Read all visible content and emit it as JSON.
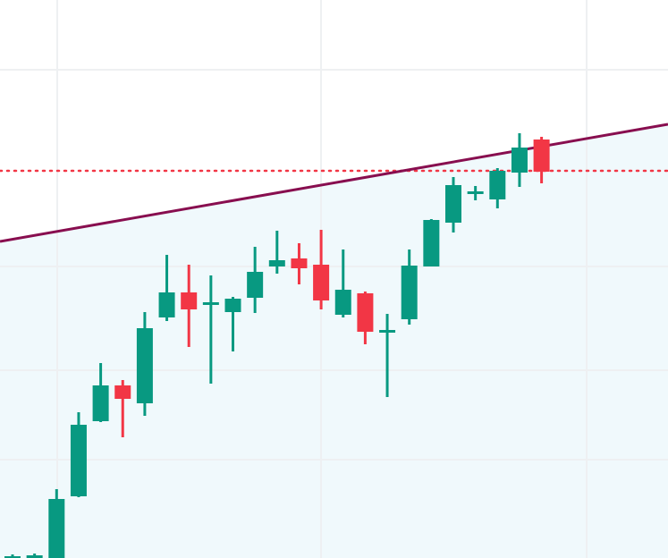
{
  "chart_data": {
    "type": "candlestick",
    "title": "",
    "xlabel": "",
    "ylabel": "",
    "grid": true,
    "ylim": [
      0,
      624
    ],
    "colors": {
      "up": "#089981",
      "down": "#F23645",
      "trendline": "#880E4F",
      "level": "#F23645",
      "grid": "#EEF0F2",
      "shade": "#F0F9FC",
      "background": "#FFFFFF"
    },
    "candles": [
      {
        "open": 2,
        "high": 4,
        "low": -1,
        "close": 2
      },
      {
        "open": 3,
        "high": 5,
        "low": -1,
        "close": 3
      },
      {
        "open": 0,
        "high": 77,
        "low": -1,
        "close": 66
      },
      {
        "open": 69,
        "high": 163,
        "low": 68,
        "close": 149
      },
      {
        "open": 153,
        "high": 218,
        "low": 152,
        "close": 193
      },
      {
        "open": 193,
        "high": 199,
        "low": 135,
        "close": 178
      },
      {
        "open": 173,
        "high": 275,
        "low": 159,
        "close": 257
      },
      {
        "open": 269,
        "high": 339,
        "low": 265,
        "close": 297
      },
      {
        "open": 297,
        "high": 328,
        "low": 236,
        "close": 278
      },
      {
        "open": 283,
        "high": 316,
        "low": 195,
        "close": 286
      },
      {
        "open": 275,
        "high": 292,
        "low": 231,
        "close": 290
      },
      {
        "open": 291,
        "high": 348,
        "low": 274,
        "close": 320
      },
      {
        "open": 326,
        "high": 366,
        "low": 318,
        "close": 333
      },
      {
        "open": 335,
        "high": 352,
        "low": 306,
        "close": 324
      },
      {
        "open": 328,
        "high": 367,
        "low": 278,
        "close": 288
      },
      {
        "open": 272,
        "high": 345,
        "low": 269,
        "close": 300
      },
      {
        "open": 296,
        "high": 298,
        "low": 239,
        "close": 253
      },
      {
        "open": 255,
        "high": 273,
        "low": 180,
        "close": 255
      },
      {
        "open": 267,
        "high": 345,
        "low": 261,
        "close": 327
      },
      {
        "open": 326,
        "high": 379,
        "low": 326,
        "close": 378
      },
      {
        "open": 375,
        "high": 426,
        "low": 364,
        "close": 417
      },
      {
        "open": 409,
        "high": 416,
        "low": 400,
        "close": 410
      },
      {
        "open": 401,
        "high": 436,
        "low": 391,
        "close": 433
      },
      {
        "open": 431,
        "high": 475,
        "low": 415,
        "close": 459
      },
      {
        "open": 468,
        "high": 471,
        "low": 419,
        "close": 432
      }
    ],
    "trendline": {
      "start": 354,
      "end": 485
    },
    "horizontal_level": 433,
    "y_gridlines": [
      110,
      210,
      326,
      546
    ]
  }
}
